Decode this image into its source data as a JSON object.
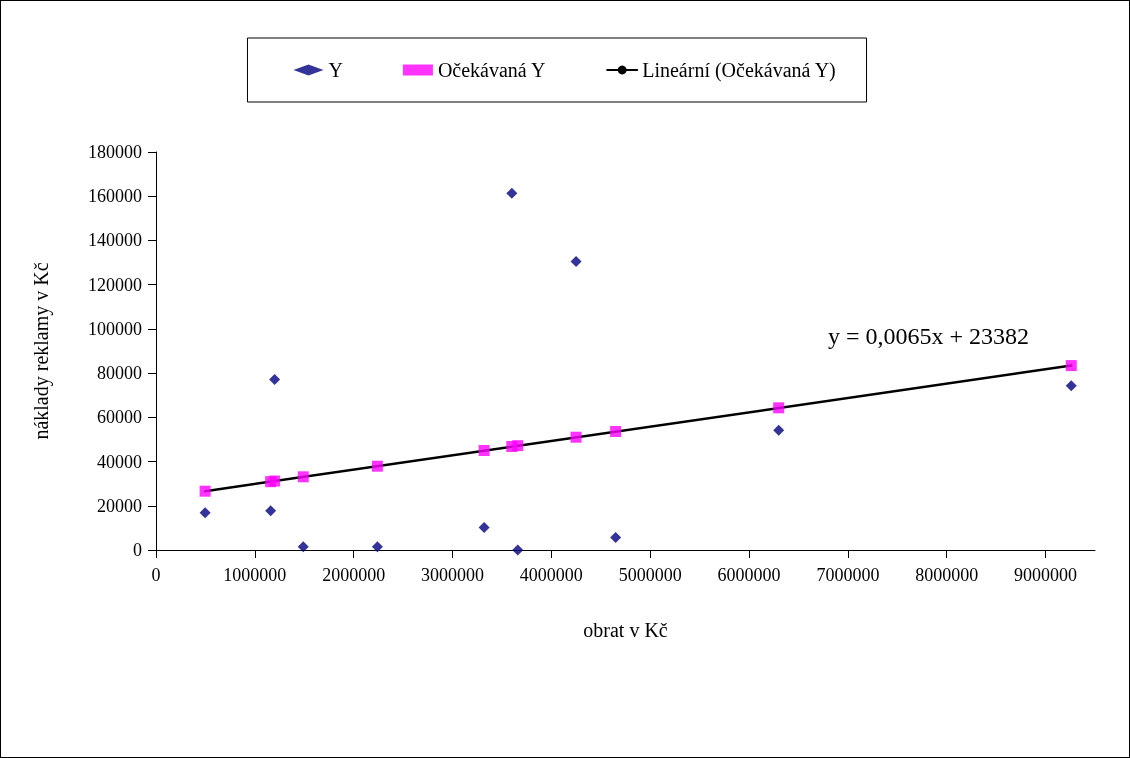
{
  "chart_data": {
    "type": "scatter",
    "xlabel": "obrat v Kč",
    "ylabel": "náklady reklamy v Kč",
    "xlim": [
      0,
      9500000
    ],
    "xticks": [
      0,
      1000000,
      2000000,
      3000000,
      4000000,
      5000000,
      6000000,
      7000000,
      8000000,
      9000000
    ],
    "ylim": [
      0,
      180000
    ],
    "yticks": [
      0,
      20000,
      40000,
      60000,
      80000,
      100000,
      120000,
      140000,
      160000,
      180000
    ],
    "grid": false,
    "legend": "top",
    "annotations": [
      "y = 0,0065x + 23382"
    ],
    "series": [
      {
        "name": "Y",
        "color": "#000080",
        "marker": "diamond",
        "x": [
          497000,
          1200000,
          1160000,
          1490000,
          2240000,
          3320000,
          3600000,
          3660000,
          4250000,
          4650000,
          6300000,
          9260000
        ],
        "values": [
          16900,
          77100,
          17700,
          1500,
          1500,
          10200,
          161300,
          0,
          130500,
          5700,
          54200,
          74300
        ]
      },
      {
        "name": "Očekávaná Y",
        "color": "#ff00ff",
        "marker": "square",
        "x": [
          497000,
          1160000,
          1200000,
          1490000,
          2240000,
          3320000,
          3600000,
          3660000,
          4250000,
          4650000,
          6300000,
          9260000
        ],
        "values": [
          26600,
          30900,
          31200,
          33100,
          37900,
          45000,
          46800,
          47200,
          51000,
          53600,
          64300,
          83400
        ]
      },
      {
        "name": "Lineární (Očekávaná Y)",
        "type": "line",
        "color": "#000000",
        "marker": "none",
        "line_style": "solid",
        "x": [
          497000,
          9260000
        ],
        "values": [
          26600,
          83400
        ]
      }
    ]
  }
}
